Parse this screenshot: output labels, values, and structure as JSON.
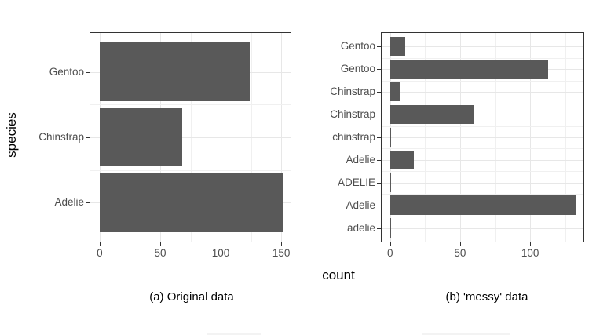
{
  "figure": {
    "xlabel": "count",
    "colors": {
      "bar": "#595959",
      "axis_text": "#4d4d4d",
      "title_text": "#000000",
      "panel_border": "#333333",
      "grid_major": "#e7e7e7",
      "grid_minor": "#f0f0f0",
      "background": "#ffffff"
    }
  },
  "chart_data": [
    {
      "type": "bar",
      "orientation": "horizontal",
      "title": "(a) Original data",
      "xlabel": "count",
      "ylabel": "species",
      "categories": [
        "Gentoo",
        "Chinstrap",
        "Adelie"
      ],
      "values": [
        124,
        68,
        152
      ],
      "x_major_ticks": [
        0,
        50,
        100,
        150
      ],
      "x_minor_ticks": [
        25,
        75,
        125
      ],
      "xlim": [
        -7.7,
        157.7
      ],
      "grid": true,
      "legend": false
    },
    {
      "type": "bar",
      "orientation": "horizontal",
      "title": "(b) 'messy' data",
      "xlabel": "count",
      "ylabel": "",
      "categories": [
        "Gentoo",
        "Gentoo",
        "Chinstrap",
        "Chinstrap",
        "chinstrap",
        "Adelie",
        "ADELIE",
        "Adelie",
        "adelie"
      ],
      "values": [
        11,
        113,
        7,
        60,
        1,
        17,
        1,
        133,
        1
      ],
      "x_major_ticks": [
        0,
        50,
        100
      ],
      "x_minor_ticks": [
        25,
        75,
        125
      ],
      "xlim": [
        -6,
        138
      ],
      "grid": true,
      "legend": false
    }
  ]
}
